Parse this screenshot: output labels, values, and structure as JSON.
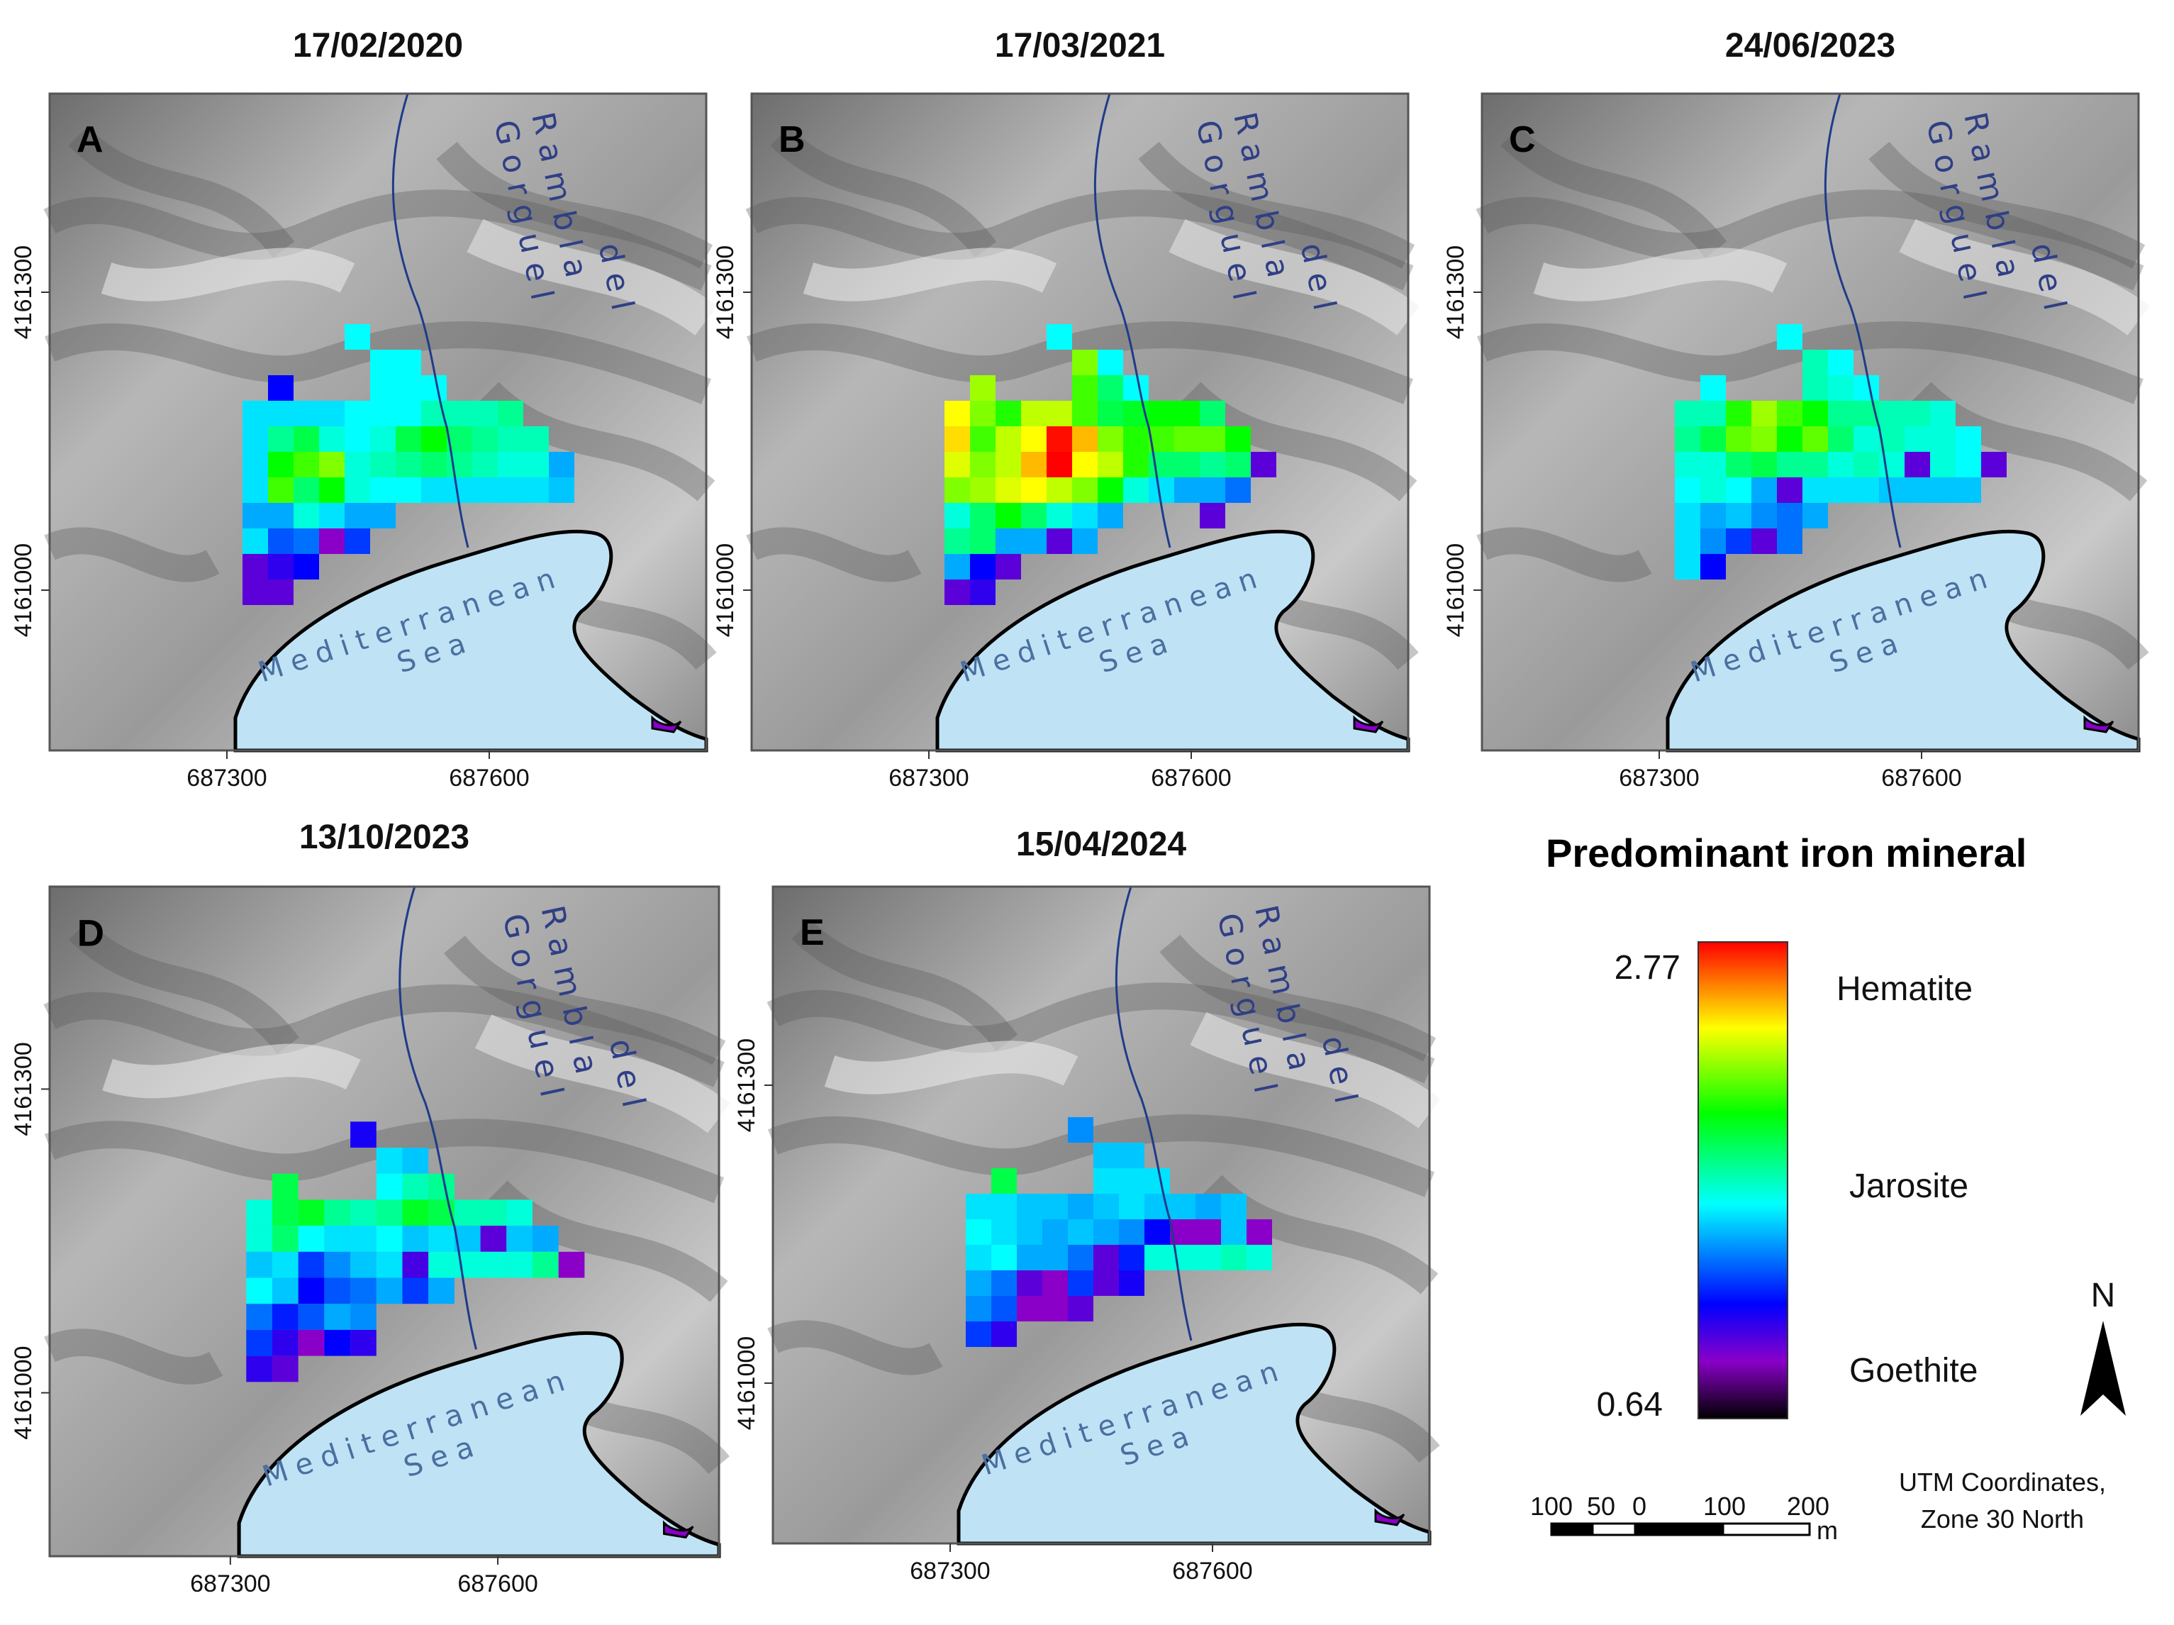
{
  "panels": [
    {
      "id": "A",
      "date": "17/02/2020",
      "letter": "A"
    },
    {
      "id": "B",
      "date": "17/03/2021",
      "letter": "B"
    },
    {
      "id": "C",
      "date": "24/06/2023",
      "letter": "C"
    },
    {
      "id": "D",
      "date": "13/10/2023",
      "letter": "D"
    },
    {
      "id": "E",
      "date": "15/04/2024",
      "letter": "E"
    }
  ],
  "map_labels": {
    "river_line1": "Rambla",
    "river_line2": "del",
    "river_line3": "Gorguel",
    "sea_line1": "Mediterranean",
    "sea_line2": "Sea"
  },
  "axes": {
    "x_ticks": [
      "687300",
      "687600"
    ],
    "y_ticks": [
      "4161300",
      "4161000"
    ]
  },
  "legend": {
    "title": "Predominant iron mineral",
    "max": "2.77",
    "min": "0.64",
    "classes": [
      "Hematite",
      "Jarosite",
      "Goethite"
    ],
    "colors": [
      "#ff0000",
      "#ffff00",
      "#00ff00",
      "#00ffff",
      "#0000ff",
      "#8a00c8",
      "#000000"
    ]
  },
  "scale_bar": {
    "labels": [
      "100",
      "50",
      "0",
      "100",
      "200"
    ],
    "unit": "m"
  },
  "north_arrow": {
    "label": "N"
  },
  "crs_note": {
    "line1": "UTM Coordinates,",
    "line2": "Zone 30 North"
  },
  "pixel_values": {
    "A": [
      [
        null,
        null,
        null,
        null,
        1.65,
        null,
        null,
        null,
        null,
        null,
        null,
        null,
        null
      ],
      [
        null,
        null,
        null,
        null,
        null,
        1.65,
        1.65,
        null,
        null,
        null,
        null,
        null,
        null
      ],
      [
        null,
        1.2,
        null,
        null,
        null,
        1.65,
        1.65,
        1.65,
        null,
        null,
        null,
        null,
        null
      ],
      [
        1.6,
        1.6,
        1.6,
        1.6,
        1.65,
        1.65,
        1.65,
        1.75,
        1.75,
        1.75,
        1.8,
        null,
        null
      ],
      [
        1.6,
        1.8,
        1.9,
        1.7,
        1.65,
        1.7,
        1.9,
        2.0,
        1.85,
        1.8,
        1.75,
        1.75,
        null
      ],
      [
        1.6,
        2.0,
        2.1,
        2.2,
        1.7,
        1.75,
        1.8,
        1.85,
        1.8,
        1.75,
        1.7,
        1.7,
        1.5
      ],
      [
        1.6,
        2.1,
        1.85,
        2.0,
        1.7,
        1.65,
        1.65,
        1.6,
        1.6,
        1.6,
        1.6,
        1.6,
        1.55
      ],
      [
        1.5,
        1.5,
        1.7,
        1.6,
        1.5,
        1.5,
        null,
        null,
        null,
        null,
        null,
        null,
        null
      ],
      [
        1.6,
        1.35,
        1.4,
        0.9,
        1.3,
        null,
        null,
        null,
        null,
        null,
        null,
        null,
        null
      ],
      [
        1.0,
        1.1,
        1.2,
        null,
        null,
        null,
        null,
        null,
        null,
        null,
        null,
        null,
        null
      ],
      [
        1.0,
        1.0,
        null,
        null,
        null,
        null,
        null,
        null,
        null,
        null,
        null,
        null,
        null
      ]
    ],
    "B": [
      [
        null,
        null,
        null,
        null,
        1.65,
        null,
        null,
        null,
        null,
        null,
        null,
        null,
        null
      ],
      [
        null,
        null,
        null,
        null,
        null,
        2.2,
        1.65,
        null,
        null,
        null,
        null,
        null,
        null
      ],
      [
        null,
        2.25,
        null,
        null,
        null,
        2.1,
        1.85,
        1.65,
        null,
        null,
        null,
        null,
        null
      ],
      [
        2.4,
        2.2,
        2.05,
        2.3,
        2.3,
        2.1,
        1.9,
        1.95,
        2.0,
        2.0,
        1.85,
        null,
        null
      ],
      [
        2.45,
        2.1,
        2.3,
        2.4,
        2.75,
        2.5,
        2.2,
        2.05,
        2.1,
        2.15,
        2.15,
        2.0,
        null
      ],
      [
        2.35,
        2.2,
        2.3,
        2.5,
        2.77,
        2.4,
        2.3,
        2.05,
        1.85,
        1.85,
        1.8,
        1.85,
        1.0
      ],
      [
        2.2,
        2.25,
        2.35,
        2.4,
        2.3,
        2.2,
        2.0,
        1.7,
        1.6,
        1.5,
        1.5,
        1.4,
        null
      ],
      [
        1.7,
        1.85,
        2.0,
        1.85,
        1.7,
        1.6,
        1.5,
        null,
        null,
        null,
        1.0,
        null,
        null
      ],
      [
        1.8,
        1.85,
        1.5,
        1.5,
        1.0,
        1.5,
        null,
        null,
        null,
        null,
        null,
        null,
        null
      ],
      [
        1.5,
        1.2,
        1.0,
        null,
        null,
        null,
        null,
        null,
        null,
        null,
        null,
        null,
        null
      ],
      [
        1.0,
        1.1,
        null,
        null,
        null,
        null,
        null,
        null,
        null,
        null,
        null,
        null,
        null
      ]
    ],
    "C": [
      [
        null,
        null,
        null,
        null,
        1.65,
        null,
        null,
        null,
        null,
        null,
        null,
        null,
        null
      ],
      [
        null,
        null,
        null,
        null,
        null,
        1.75,
        1.65,
        null,
        null,
        null,
        null,
        null,
        null
      ],
      [
        null,
        1.65,
        null,
        null,
        null,
        1.75,
        1.7,
        1.65,
        null,
        null,
        null,
        null,
        null
      ],
      [
        1.75,
        1.75,
        2.05,
        2.25,
        2.1,
        2.0,
        1.8,
        1.8,
        1.75,
        1.75,
        1.7,
        null,
        null
      ],
      [
        1.8,
        1.9,
        2.15,
        2.2,
        2.0,
        2.15,
        1.85,
        1.7,
        1.75,
        1.7,
        1.7,
        1.65,
        null
      ],
      [
        1.7,
        1.7,
        1.85,
        1.9,
        1.8,
        1.8,
        1.7,
        1.75,
        1.7,
        1.0,
        1.7,
        1.65,
        1.0
      ],
      [
        1.65,
        1.7,
        1.65,
        1.5,
        1.0,
        1.6,
        1.6,
        1.6,
        1.55,
        1.55,
        1.55,
        1.55,
        null
      ],
      [
        1.6,
        1.5,
        1.55,
        1.45,
        1.4,
        1.5,
        null,
        null,
        null,
        null,
        null,
        null,
        null
      ],
      [
        1.6,
        1.45,
        1.3,
        1.0,
        1.4,
        null,
        null,
        null,
        null,
        null,
        null,
        null,
        null
      ],
      [
        1.6,
        1.2,
        null,
        null,
        null,
        null,
        null,
        null,
        null,
        null,
        null,
        null,
        null
      ],
      [
        null,
        null,
        null,
        null,
        null,
        null,
        null,
        null,
        null,
        null,
        null,
        null,
        null
      ]
    ],
    "D": [
      [
        null,
        null,
        null,
        null,
        1.15,
        null,
        null,
        null,
        null,
        null,
        null,
        null,
        null
      ],
      [
        null,
        null,
        null,
        null,
        null,
        1.6,
        1.55,
        null,
        null,
        null,
        null,
        null,
        null
      ],
      [
        null,
        1.9,
        null,
        null,
        null,
        1.65,
        1.75,
        1.8,
        null,
        null,
        null,
        null,
        null
      ],
      [
        1.7,
        1.9,
        1.95,
        1.8,
        1.75,
        1.8,
        1.95,
        1.9,
        1.75,
        1.75,
        1.7,
        null,
        null
      ],
      [
        1.7,
        1.85,
        1.65,
        1.6,
        1.6,
        1.65,
        1.55,
        1.6,
        1.55,
        1.0,
        1.55,
        1.5,
        null
      ],
      [
        1.55,
        1.6,
        1.3,
        1.45,
        1.55,
        1.6,
        1.05,
        1.7,
        1.7,
        1.7,
        1.7,
        1.8,
        0.9
      ],
      [
        1.65,
        1.55,
        1.2,
        1.35,
        1.4,
        1.5,
        1.3,
        1.5,
        null,
        null,
        null,
        null,
        null
      ],
      [
        1.4,
        1.25,
        1.35,
        1.5,
        1.45,
        null,
        null,
        null,
        null,
        null,
        null,
        null,
        null
      ],
      [
        1.3,
        1.1,
        0.9,
        1.2,
        1.1,
        null,
        null,
        null,
        null,
        null,
        null,
        null,
        null
      ],
      [
        1.1,
        1.0,
        null,
        null,
        null,
        null,
        null,
        null,
        null,
        null,
        null,
        null,
        null
      ],
      [
        null,
        null,
        null,
        null,
        null,
        null,
        null,
        null,
        null,
        null,
        null,
        null,
        null
      ]
    ],
    "E": [
      [
        null,
        null,
        null,
        null,
        1.45,
        null,
        null,
        null,
        null,
        null,
        null,
        null,
        null
      ],
      [
        null,
        null,
        null,
        null,
        null,
        1.55,
        1.55,
        null,
        null,
        null,
        null,
        null,
        null
      ],
      [
        null,
        1.9,
        null,
        null,
        null,
        1.6,
        1.6,
        1.6,
        null,
        null,
        null,
        null,
        null
      ],
      [
        1.6,
        1.6,
        1.55,
        1.55,
        1.5,
        1.55,
        1.6,
        1.55,
        1.55,
        1.5,
        1.55,
        null,
        null
      ],
      [
        1.65,
        1.6,
        1.55,
        1.5,
        1.55,
        1.5,
        1.45,
        1.2,
        0.9,
        0.9,
        1.55,
        0.9,
        null
      ],
      [
        1.6,
        1.65,
        1.5,
        1.5,
        1.4,
        1.0,
        1.25,
        1.7,
        1.7,
        1.7,
        1.75,
        1.7,
        null
      ],
      [
        1.5,
        1.4,
        1.0,
        0.9,
        1.3,
        1.0,
        1.15,
        null,
        null,
        null,
        null,
        null,
        null
      ],
      [
        1.45,
        1.35,
        0.9,
        0.9,
        1.0,
        null,
        null,
        null,
        null,
        null,
        null,
        null,
        null
      ],
      [
        1.3,
        1.1,
        null,
        null,
        null,
        null,
        null,
        null,
        null,
        null,
        null,
        null,
        null
      ],
      [
        null,
        null,
        null,
        null,
        null,
        null,
        null,
        null,
        null,
        null,
        null,
        null,
        null
      ],
      [
        null,
        null,
        null,
        null,
        null,
        null,
        null,
        null,
        null,
        null,
        null,
        null,
        null
      ]
    ]
  }
}
